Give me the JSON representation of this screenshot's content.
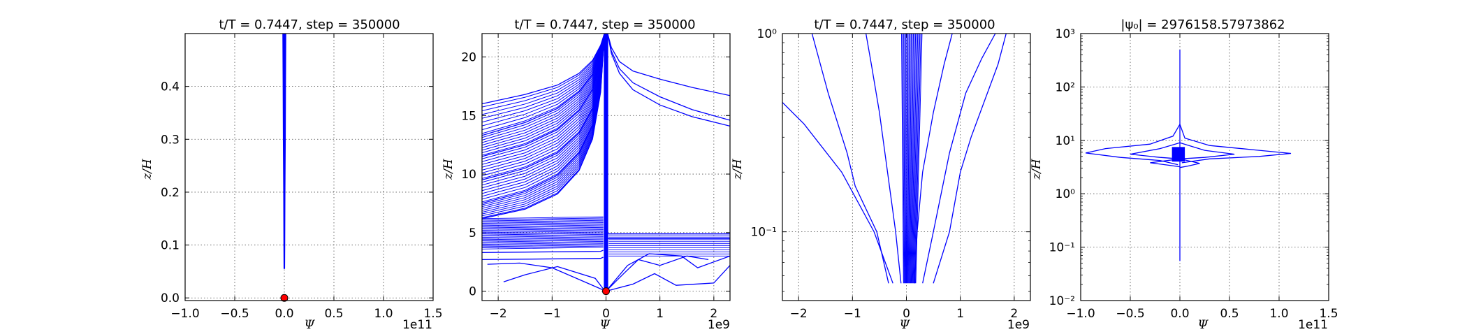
{
  "chart_data": [
    {
      "type": "line",
      "title": "t/T = 0.7447, step = 350000",
      "xlabel": "Ψ",
      "ylabel": "z/H",
      "x_offset_text": "1e11",
      "xlim": [
        -1.0,
        1.5
      ],
      "ylim": [
        -0.005,
        0.5
      ],
      "xscale": "linear",
      "yscale": "linear",
      "x_ticks": [
        "−1.0",
        "−0.5",
        "0.0",
        "0.5",
        "1.0",
        "1.5"
      ],
      "y_ticks": [
        "0.0",
        "0.1",
        "0.2",
        "0.3",
        "0.4"
      ],
      "grid": true,
      "line_color": "#0000ff",
      "marker_color": "#ff0000",
      "series": [
        {
          "x": [
            -0.015,
            -0.012,
            -0.01,
            -0.006,
            -0.004,
            -0.003
          ],
          "y": [
            0.5,
            0.4,
            0.3,
            0.2,
            0.1,
            0.055
          ]
        },
        {
          "x": [
            0.015,
            0.012,
            0.01,
            0.006,
            0.004,
            0.003
          ],
          "y": [
            0.5,
            0.4,
            0.3,
            0.2,
            0.1,
            0.055
          ]
        },
        {
          "x": [
            0.0,
            0.0
          ],
          "y": [
            0.5,
            0.055
          ]
        }
      ],
      "marker": {
        "x": 0.0,
        "y": 0.0
      }
    },
    {
      "type": "line",
      "title": "t/T = 0.7447, step = 350000",
      "xlabel": "Ψ",
      "ylabel": "z/H",
      "x_offset_text": "1e9",
      "xlim": [
        -2.3,
        2.3
      ],
      "ylim": [
        -0.8,
        22.0
      ],
      "xscale": "linear",
      "yscale": "linear",
      "x_ticks": [
        "−2",
        "−1",
        "0",
        "1",
        "2"
      ],
      "y_ticks": [
        "0",
        "5",
        "10",
        "15",
        "20"
      ],
      "grid": true,
      "line_color": "#0000ff",
      "marker_color": "#ff0000",
      "series": [
        {
          "x": [
            -2.3,
            -1.5,
            -0.9,
            -0.5,
            -0.25,
            -0.1,
            -0.03
          ],
          "y": [
            16.0,
            16.8,
            17.6,
            18.6,
            19.7,
            21.0,
            22.0
          ]
        },
        {
          "x": [
            -2.3,
            -1.5,
            -0.9,
            -0.5,
            -0.25,
            -0.1,
            -0.03
          ],
          "y": [
            13.3,
            14.4,
            15.6,
            17.0,
            18.5,
            20.4,
            22.0
          ]
        },
        {
          "x": [
            -2.3,
            -1.5,
            -0.9,
            -0.5,
            -0.25,
            -0.1,
            -0.03
          ],
          "y": [
            11.5,
            12.5,
            13.8,
            15.4,
            17.2,
            19.6,
            22.0
          ]
        },
        {
          "x": [
            -2.3,
            -1.5,
            -0.9,
            -0.5,
            -0.25,
            -0.1,
            -0.03
          ],
          "y": [
            9.5,
            10.5,
            11.8,
            13.5,
            15.6,
            18.5,
            22.0
          ]
        },
        {
          "x": [
            -2.3,
            -1.5,
            -0.9,
            -0.5,
            -0.25,
            -0.1,
            -0.03
          ],
          "y": [
            7.5,
            8.5,
            9.9,
            11.8,
            14.2,
            17.6,
            22.0
          ]
        },
        {
          "x": [
            -2.3,
            -1.5,
            -0.9,
            -0.5,
            -0.25,
            -0.1,
            -0.03
          ],
          "y": [
            6.2,
            7.0,
            8.3,
            10.3,
            13.0,
            17.0,
            22.0
          ]
        },
        {
          "x": [
            0.03,
            0.1,
            0.25,
            0.5,
            1.0,
            1.6,
            2.3
          ],
          "y": [
            22.0,
            20.8,
            19.6,
            18.8,
            18.1,
            17.4,
            16.7
          ]
        },
        {
          "x": [
            0.03,
            0.1,
            0.25,
            0.5,
            1.0,
            1.6,
            2.3
          ],
          "y": [
            22.0,
            20.5,
            19.0,
            17.8,
            16.6,
            15.5,
            14.6
          ]
        },
        {
          "x": [
            0.03,
            0.1,
            0.25,
            0.5,
            1.0,
            1.6,
            2.3
          ],
          "y": [
            22.0,
            20.3,
            18.6,
            17.2,
            15.9,
            14.9,
            14.1
          ]
        },
        {
          "x": [
            -2.3,
            -0.1,
            -0.05
          ],
          "y": [
            3.3,
            3.4,
            3.5
          ]
        },
        {
          "x": [
            -2.3,
            -0.1,
            -0.05
          ],
          "y": [
            2.7,
            2.8,
            2.9
          ]
        },
        {
          "x": [
            0.02,
            2.3
          ],
          "y": [
            4.9,
            4.9
          ]
        },
        {
          "x": [
            0.02,
            2.3
          ],
          "y": [
            4.5,
            4.5
          ]
        },
        {
          "x": [
            -1.9,
            -1.5,
            -0.9,
            -0.2,
            -0.02
          ],
          "y": [
            0.8,
            1.4,
            2.1,
            1.1,
            0.0
          ]
        },
        {
          "x": [
            -2.2,
            -1.6,
            -1.0,
            -0.3,
            0.0
          ],
          "y": [
            2.3,
            2.4,
            2.0,
            0.6,
            0.0
          ]
        },
        {
          "x": [
            0.0,
            0.35,
            0.6,
            1.0,
            1.5,
            1.9
          ],
          "y": [
            0.0,
            1.6,
            2.7,
            2.2,
            3.0,
            2.7
          ]
        },
        {
          "x": [
            0.0,
            0.5,
            0.9,
            1.3,
            2.0,
            2.3
          ],
          "y": [
            0.0,
            0.6,
            1.5,
            0.5,
            0.7,
            2.2
          ]
        },
        {
          "x": [
            0.0,
            0.4,
            0.8,
            1.4,
            1.7,
            2.3
          ],
          "y": [
            0.0,
            2.2,
            3.2,
            3.0,
            2.0,
            3.0
          ]
        },
        {
          "x": [
            0.0,
            0.0
          ],
          "y": [
            0.0,
            22.0
          ]
        }
      ],
      "marker": {
        "x": 0.0,
        "y": 0.0
      }
    },
    {
      "type": "line",
      "title": "t/T = 0.7447, step = 350000",
      "xlabel": "Ψ",
      "ylabel": "z/H",
      "x_offset_text": "1e9",
      "xlim": [
        -2.3,
        2.3
      ],
      "ylim": [
        0.045,
        1.0
      ],
      "xscale": "linear",
      "yscale": "log",
      "x_ticks": [
        "−2",
        "−1",
        "0",
        "1",
        "2"
      ],
      "y_ticks": [
        "10⁻¹",
        "10⁰"
      ],
      "grid": true,
      "line_color": "#0000ff",
      "series": [
        {
          "x": [
            -0.25,
            -0.6,
            -1.2,
            -1.9,
            -2.3
          ],
          "y": [
            0.055,
            0.1,
            0.2,
            0.35,
            0.45
          ]
        },
        {
          "x": [
            -0.33,
            -0.55,
            -0.95,
            -1.1,
            -1.45,
            -1.75
          ],
          "y": [
            0.055,
            0.1,
            0.17,
            0.25,
            0.5,
            1.0
          ]
        },
        {
          "x": [
            -0.1,
            -0.2,
            -0.35,
            -0.5,
            -0.65,
            -0.75
          ],
          "y": [
            0.055,
            0.1,
            0.2,
            0.4,
            0.7,
            1.0
          ]
        },
        {
          "x": [
            0.15,
            0.2,
            0.3,
            0.5,
            0.7,
            0.85
          ],
          "y": [
            0.055,
            0.1,
            0.2,
            0.4,
            0.7,
            1.0
          ]
        },
        {
          "x": [
            0.3,
            0.5,
            0.8,
            1.1,
            1.4,
            1.65
          ],
          "y": [
            0.055,
            0.1,
            0.25,
            0.5,
            0.75,
            1.0
          ]
        },
        {
          "x": [
            0.5,
            0.8,
            1.0,
            1.2,
            1.7,
            1.85
          ],
          "y": [
            0.055,
            0.1,
            0.2,
            0.3,
            0.7,
            1.0
          ]
        }
      ]
    },
    {
      "type": "line",
      "title": "|ψ₀| = 2976158.57973862",
      "xlabel": "Ψ",
      "ylabel": "z/H",
      "x_offset_text": "1e11",
      "xlim": [
        -1.0,
        1.5
      ],
      "ylim": [
        0.01,
        1000
      ],
      "xscale": "linear",
      "yscale": "log",
      "x_ticks": [
        "−1.0",
        "−0.5",
        "0.0",
        "0.5",
        "1.0",
        "1.5"
      ],
      "y_ticks": [
        "10⁻²",
        "10⁻¹",
        "10⁰",
        "10¹",
        "10²",
        "10³"
      ],
      "grid": true,
      "line_color": "#0000ff",
      "series": [
        {
          "x": [
            0.0,
            0.0
          ],
          "y": [
            0.055,
            500
          ]
        },
        {
          "x": [
            0.0,
            -0.07,
            -0.3,
            -0.75,
            -0.95,
            -0.6,
            -0.2,
            -0.02
          ],
          "y": [
            20,
            12,
            8.5,
            7.0,
            5.8,
            4.8,
            4.2,
            3.5
          ]
        },
        {
          "x": [
            0.0,
            0.05,
            0.3,
            0.8,
            1.12,
            0.8,
            0.3,
            0.02
          ],
          "y": [
            20,
            11,
            8.0,
            6.5,
            5.7,
            5.0,
            4.5,
            3.8
          ]
        },
        {
          "x": [
            0.0,
            -0.2,
            -0.5,
            -0.2,
            0.0
          ],
          "y": [
            9,
            7.0,
            5.5,
            4.8,
            4.5
          ]
        },
        {
          "x": [
            0.0,
            0.25,
            0.55,
            0.25,
            0.0
          ],
          "y": [
            9,
            6.5,
            5.5,
            4.8,
            4.5
          ]
        },
        {
          "x": [
            0.0,
            -0.3,
            -0.1,
            0.0
          ],
          "y": [
            4.5,
            3.8,
            3.4,
            3.2
          ]
        },
        {
          "x": [
            0.0,
            0.2,
            0.08,
            0.0
          ],
          "y": [
            4.5,
            3.7,
            3.3,
            3.1
          ]
        }
      ]
    }
  ]
}
